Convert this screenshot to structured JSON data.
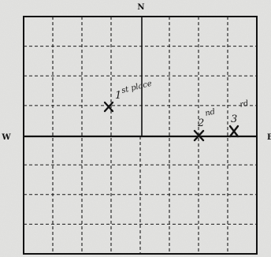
{
  "compass": {
    "north": "N",
    "west": "W",
    "east": "E"
  },
  "grid": {
    "columns": 8,
    "rows": 8
  },
  "colors": {
    "background": "#e4e4e2",
    "ink": "#111111"
  },
  "markers": [
    {
      "index": "1",
      "note": "st place"
    },
    {
      "index": "2",
      "note": "nd"
    },
    {
      "index": "3",
      "note": "rd"
    }
  ]
}
